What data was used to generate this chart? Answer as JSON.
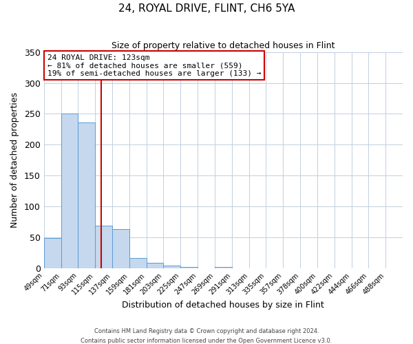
{
  "title": "24, ROYAL DRIVE, FLINT, CH6 5YA",
  "subtitle": "Size of property relative to detached houses in Flint",
  "xlabel": "Distribution of detached houses by size in Flint",
  "ylabel": "Number of detached properties",
  "bin_labels": [
    "49sqm",
    "71sqm",
    "93sqm",
    "115sqm",
    "137sqm",
    "159sqm",
    "181sqm",
    "203sqm",
    "225sqm",
    "247sqm",
    "269sqm",
    "291sqm",
    "313sqm",
    "335sqm",
    "357sqm",
    "378sqm",
    "400sqm",
    "422sqm",
    "444sqm",
    "466sqm",
    "488sqm"
  ],
  "bar_values": [
    49,
    251,
    236,
    69,
    64,
    17,
    9,
    5,
    2,
    0,
    2,
    0,
    0,
    0,
    0,
    0,
    0,
    0,
    0,
    0,
    0
  ],
  "bar_color": "#c5d8ed",
  "bar_edge_color": "#5b9bd5",
  "ylim": [
    0,
    350
  ],
  "yticks": [
    0,
    50,
    100,
    150,
    200,
    250,
    300,
    350
  ],
  "vline_color": "#cc0000",
  "annotation_title": "24 ROYAL DRIVE: 123sqm",
  "annotation_line1": "← 81% of detached houses are smaller (559)",
  "annotation_line2": "19% of semi-detached houses are larger (133) →",
  "annotation_box_color": "#ffffff",
  "annotation_box_edge_color": "#cc0000",
  "footer_line1": "Contains HM Land Registry data © Crown copyright and database right 2024.",
  "footer_line2": "Contains public sector information licensed under the Open Government Licence v3.0.",
  "background_color": "#ffffff",
  "grid_color": "#c0cfe0"
}
